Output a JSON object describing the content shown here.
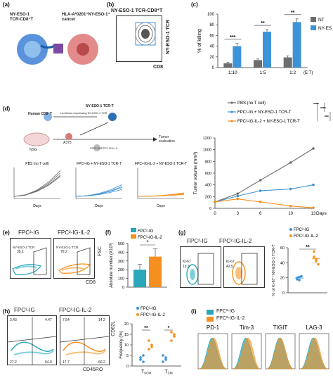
{
  "panels": {
    "a": {
      "label": "(a)",
      "cell_left": "NY-ESO-1\nTCR-CD8⁺T",
      "cell_right": "HLA-A*0201⁺NY-ESO-1⁺\ncancer"
    },
    "b": {
      "label": "(b)",
      "title": "NY-ESO-1 TCR-CD8⁺T",
      "xlabel": "CD8",
      "ylabel": "NY-ESO-1 TCR"
    },
    "c": {
      "label": "(c)"
    },
    "d": {
      "label": "(d)",
      "human_cd8": "Human CD8⁺T",
      "lentivirus": "Lentivirus expressing NY-ESO-1 TCR",
      "tcr_t": "NY-ESO-1 TCR-T",
      "nsg": "NSG",
      "a375": "A375",
      "fpc": "FPC²-IG/FPC²-IG-IL-2",
      "tumor_eval": "Tumor evaluation",
      "small_titles": [
        "PBS (no T cell)",
        "FPC²-IG + NY-ESO-1 TCR-T",
        "FPC²-IG-IL-2 + NY-ESO-1 TCR-T"
      ],
      "small_xlabel": "Days",
      "small_ylabel": "Tumor volume"
    },
    "e": {
      "label": "(e)",
      "left_title": "FPC²-IG",
      "right_title": "FPC²-IG-IL-2",
      "left_gate": "NY-ESO-1 TCR",
      "left_value": "35.1",
      "right_gate": "NY-ESO-1 TCR",
      "right_value": "76.2",
      "xlabel": "CD8",
      "ylabel": "FSC"
    },
    "f": {
      "label": "(f)"
    },
    "g": {
      "label": "(g)",
      "left_title": "FPC²-IG",
      "right_title": "FPC²-IG-IL-2",
      "left_gate": "Ki-67",
      "left_value": "19.3",
      "right_gate": "Ki-67",
      "right_value": "42.5"
    },
    "h": {
      "label": "(h)",
      "left_title": "FPC²-IG",
      "right_title": "FPC²-IG-IL-2",
      "left_quads": [
        "3.43",
        "4.47",
        "27.2",
        "64.9"
      ],
      "right_quads": [
        "7.54",
        "14.2",
        "17.7",
        "60.2"
      ],
      "xlabel": "CD45RO",
      "ylabel": "CD62L"
    },
    "i": {
      "label": "(i)",
      "markers": [
        "PD-1",
        "Tim-3",
        "TIGIT",
        "LAG-3"
      ]
    }
  },
  "legends": {
    "ig": "FPC²-IG",
    "il2": "FPC²-IG-IL-2"
  },
  "colors": {
    "gray": "#6d6d6d",
    "blue": "#3d93d8",
    "teal": "#2aa7b8",
    "orange": "#f5901e",
    "pink": "#e6757f"
  },
  "chart_data": [
    {
      "id": "c",
      "type": "bar",
      "categories": [
        "1:10",
        "1:5",
        "1:2"
      ],
      "xlabel": "(E:T)",
      "ylabel": "% of killing",
      "ylim": [
        0,
        100
      ],
      "yticks": [
        0,
        20,
        40,
        60,
        80,
        100
      ],
      "series": [
        {
          "name": "NT",
          "values": [
            8,
            14,
            19
          ]
        },
        {
          "name": "NY-ESO-1 TCR",
          "values": [
            40,
            67,
            85
          ]
        }
      ],
      "errors": [
        [
          2,
          2,
          3
        ],
        [
          5,
          4,
          6
        ]
      ],
      "significance": [
        "***",
        "**",
        "**"
      ]
    },
    {
      "id": "d",
      "type": "line",
      "x": [
        0,
        3,
        6,
        10,
        13
      ],
      "xlabel": "Days",
      "ylabel": "Tumor volume (mm³)",
      "ylim": [
        0,
        1200
      ],
      "yticks": [
        0,
        200,
        400,
        600,
        800,
        1000,
        1200
      ],
      "series": [
        {
          "name": "PBS (no T cell)",
          "values": [
            110,
            250,
            480,
            780,
            1020
          ]
        },
        {
          "name": "FPC²-IG + NY-ESO-1 TCR-T",
          "values": [
            110,
            210,
            300,
            330,
            400
          ]
        },
        {
          "name": "FPC²-IG-IL-2 + NY-ESO-1 TCR-T",
          "values": [
            110,
            160,
            110,
            40,
            10
          ]
        }
      ],
      "significance": [
        "****",
        "****",
        "***"
      ]
    },
    {
      "id": "f",
      "type": "bar",
      "categories": [
        "FPC²-IG",
        "FPC²-IG-IL-2"
      ],
      "ylabel": "Absolute number (X10³)",
      "ylim": [
        0,
        500
      ],
      "yticks": [
        0,
        100,
        200,
        300,
        400,
        500
      ],
      "values": [
        200,
        350
      ],
      "errors": [
        60,
        90
      ],
      "significance": "*"
    },
    {
      "id": "g",
      "type": "scatter",
      "categories": [
        "FPC²-IG",
        "FPC²-IG-IL-2"
      ],
      "ylabel": "% of Ki-67⁺ NY-ESO-1 TCR-T",
      "ylim": [
        0,
        60
      ],
      "yticks": [
        0,
        20,
        40,
        60
      ],
      "groups": [
        [
          20,
          17,
          22,
          18,
          21
        ],
        [
          48,
          42,
          38,
          55,
          45
        ]
      ],
      "significance": "**"
    },
    {
      "id": "h",
      "type": "scatter",
      "categories": [
        "TʙCM",
        "TʙEM"
      ],
      "category_labels": [
        "T",
        "T"
      ],
      "category_subs": [
        "SCM",
        "CM"
      ],
      "ylabel": "Frequency (%)",
      "ylim": [
        0,
        20
      ],
      "yticks": [
        0,
        5,
        10,
        15,
        20
      ],
      "groups": [
        [
          [
            3,
            2,
            4,
            5
          ],
          [
            8,
            10,
            12,
            9
          ]
        ],
        [
          [
            2,
            3,
            5,
            4
          ],
          [
            12,
            14,
            16,
            15
          ]
        ]
      ],
      "significance": [
        "**",
        "*"
      ]
    }
  ]
}
